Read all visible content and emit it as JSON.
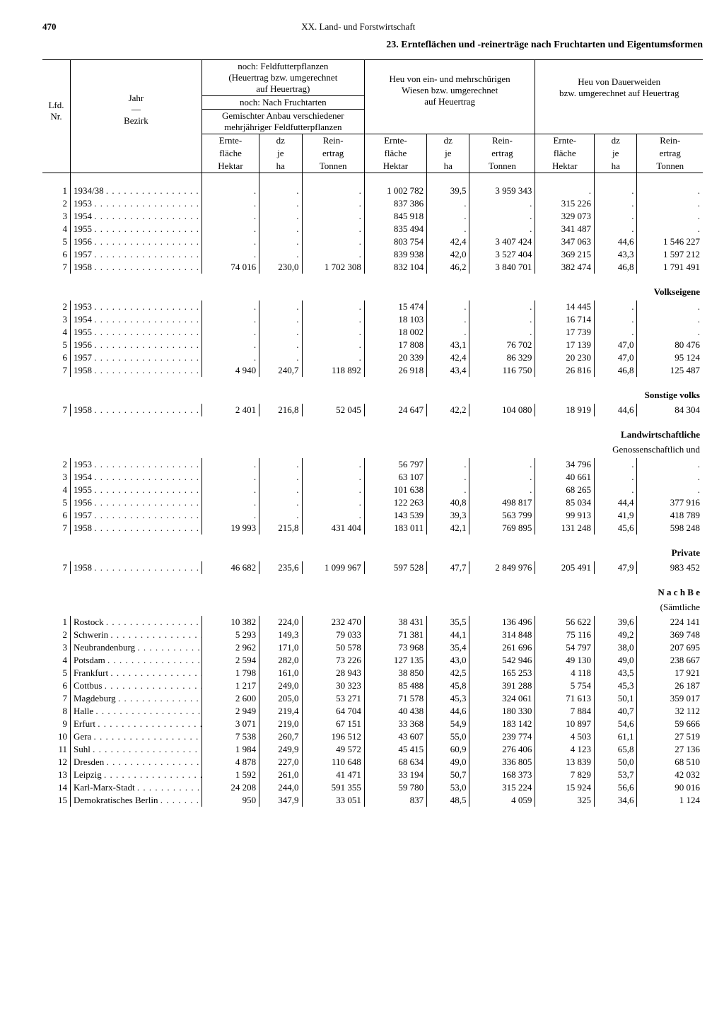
{
  "page_number": "470",
  "chapter": "XX. Land- und Forstwirtschaft",
  "title": "23. Ernteflächen und -reinerträge nach Fruchtarten und Eigentumsformen",
  "head": {
    "lfd": "Lfd.\nNr.",
    "jahr": "Jahr",
    "bezirk": "Bezirk",
    "g1_top1": "noch: Feldfutterpflanzen",
    "g1_top2": "(Heuertrag bzw. umgerechnet",
    "g1_top3": "auf Heuertrag)",
    "g1_mid": "noch: Nach Fruchtarten",
    "g1_low1": "Gemischter Anbau verschiedener",
    "g1_low2": "mehrjähriger Feldfutterpflanzen",
    "g2_top1": "Heu von ein- und mehrschürigen",
    "g2_top2": "Wiesen bzw. umgerechnet",
    "g2_top3": "auf Heuertrag",
    "g3_top1": "Heu von Dauerweiden",
    "g3_top2": "bzw. umgerechnet auf Heuertrag",
    "col_a1": "Ernte-",
    "col_a2": "fläche",
    "col_a3": "Hektar",
    "col_b1": "dz",
    "col_b2": "je",
    "col_b3": "ha",
    "col_c1": "Rein-",
    "col_c2": "ertrag",
    "col_c3": "Tonnen"
  },
  "sections": [
    {
      "label": "",
      "sub": "",
      "rows": [
        {
          "nr": "1",
          "y": "1934/38",
          "a": ".",
          "b": ".",
          "c": ".",
          "d": "1 002 782",
          "e": "39,5",
          "f": "3 959 343",
          "g": ".",
          "h": ".",
          "i": "."
        },
        {
          "nr": "2",
          "y": "1953",
          "a": ".",
          "b": ".",
          "c": ".",
          "d": "837 386",
          "e": ".",
          "f": ".",
          "g": "315 226",
          "h": ".",
          "i": "."
        },
        {
          "nr": "3",
          "y": "1954",
          "a": ".",
          "b": ".",
          "c": ".",
          "d": "845 918",
          "e": ".",
          "f": ".",
          "g": "329 073",
          "h": ".",
          "i": "."
        },
        {
          "nr": "4",
          "y": "1955",
          "a": ".",
          "b": ".",
          "c": ".",
          "d": "835 494",
          "e": ".",
          "f": ".",
          "g": "341 487",
          "h": ".",
          "i": "."
        },
        {
          "nr": "5",
          "y": "1956",
          "a": ".",
          "b": ".",
          "c": ".",
          "d": "803 754",
          "e": "42,4",
          "f": "3 407 424",
          "g": "347 063",
          "h": "44,6",
          "i": "1 546 227"
        },
        {
          "nr": "6",
          "y": "1957",
          "a": ".",
          "b": ".",
          "c": ".",
          "d": "839 938",
          "e": "42,0",
          "f": "3 527 404",
          "g": "369 215",
          "h": "43,3",
          "i": "1 597 212"
        },
        {
          "nr": "7",
          "y": "1958",
          "a": "74 016",
          "b": "230,0",
          "c": "1 702 308",
          "d": "832 104",
          "e": "46,2",
          "f": "3 840 701",
          "g": "382 474",
          "h": "46,8",
          "i": "1 791 491"
        }
      ]
    },
    {
      "label": "Volkseigene",
      "sub": "",
      "rows": [
        {
          "nr": "2",
          "y": "1953",
          "a": ".",
          "b": ".",
          "c": ".",
          "d": "15 474",
          "e": ".",
          "f": ".",
          "g": "14 445",
          "h": ".",
          "i": "."
        },
        {
          "nr": "3",
          "y": "1954",
          "a": ".",
          "b": ".",
          "c": ".",
          "d": "18 103",
          "e": ".",
          "f": ".",
          "g": "16 714",
          "h": ".",
          "i": "."
        },
        {
          "nr": "4",
          "y": "1955",
          "a": ".",
          "b": ".",
          "c": ".",
          "d": "18 002",
          "e": ".",
          "f": ".",
          "g": "17 739",
          "h": ".",
          "i": "."
        },
        {
          "nr": "5",
          "y": "1956",
          "a": ".",
          "b": ".",
          "c": ".",
          "d": "17 808",
          "e": "43,1",
          "f": "76 702",
          "g": "17 139",
          "h": "47,0",
          "i": "80 476"
        },
        {
          "nr": "6",
          "y": "1957",
          "a": ".",
          "b": ".",
          "c": ".",
          "d": "20 339",
          "e": "42,4",
          "f": "86 329",
          "g": "20 230",
          "h": "47,0",
          "i": "95 124"
        },
        {
          "nr": "7",
          "y": "1958",
          "a": "4 940",
          "b": "240,7",
          "c": "118 892",
          "d": "26 918",
          "e": "43,4",
          "f": "116 750",
          "g": "26 816",
          "h": "46,8",
          "i": "125 487"
        }
      ]
    },
    {
      "label": "Sonstige volks",
      "sub": "",
      "rows": [
        {
          "nr": "7",
          "y": "1958",
          "a": "2 401",
          "b": "216,8",
          "c": "52 045",
          "d": "24 647",
          "e": "42,2",
          "f": "104 080",
          "g": "18 919",
          "h": "44,6",
          "i": "84 304"
        }
      ]
    },
    {
      "label": "Landwirtschaftliche",
      "sub": "Genossenschaftlich und",
      "rows": [
        {
          "nr": "2",
          "y": "1953",
          "a": ".",
          "b": ".",
          "c": ".",
          "d": "56 797",
          "e": ".",
          "f": ".",
          "g": "34 796",
          "h": ".",
          "i": "."
        },
        {
          "nr": "3",
          "y": "1954",
          "a": ".",
          "b": ".",
          "c": ".",
          "d": "63 107",
          "e": ".",
          "f": ".",
          "g": "40 661",
          "h": ".",
          "i": "."
        },
        {
          "nr": "4",
          "y": "1955",
          "a": ".",
          "b": ".",
          "c": ".",
          "d": "101 638",
          "e": ".",
          "f": ".",
          "g": "68 265",
          "h": ".",
          "i": "."
        },
        {
          "nr": "5",
          "y": "1956",
          "a": ".",
          "b": ".",
          "c": ".",
          "d": "122 263",
          "e": "40,8",
          "f": "498 817",
          "g": "85 034",
          "h": "44,4",
          "i": "377 916"
        },
        {
          "nr": "6",
          "y": "1957",
          "a": ".",
          "b": ".",
          "c": ".",
          "d": "143 539",
          "e": "39,3",
          "f": "563 799",
          "g": "99 913",
          "h": "41,9",
          "i": "418 789"
        },
        {
          "nr": "7",
          "y": "1958",
          "a": "19 993",
          "b": "215,8",
          "c": "431 404",
          "d": "183 011",
          "e": "42,1",
          "f": "769 895",
          "g": "131 248",
          "h": "45,6",
          "i": "598 248"
        }
      ]
    },
    {
      "label": "Private",
      "sub": "",
      "rows": [
        {
          "nr": "7",
          "y": "1958",
          "a": "46 682",
          "b": "235,6",
          "c": "1 099 967",
          "d": "597 528",
          "e": "47,7",
          "f": "2 849 976",
          "g": "205 491",
          "h": "47,9",
          "i": "983 452"
        }
      ]
    },
    {
      "label": "N a c h  B e",
      "sub": "(Sämtliche",
      "rows": [
        {
          "nr": "1",
          "y": "Rostock",
          "a": "10 382",
          "b": "224,0",
          "c": "232 470",
          "d": "38 431",
          "e": "35,5",
          "f": "136 496",
          "g": "56 622",
          "h": "39,6",
          "i": "224 141"
        },
        {
          "nr": "2",
          "y": "Schwerin",
          "a": "5 293",
          "b": "149,3",
          "c": "79 033",
          "d": "71 381",
          "e": "44,1",
          "f": "314 848",
          "g": "75 116",
          "h": "49,2",
          "i": "369 748"
        },
        {
          "nr": "3",
          "y": "Neubrandenburg",
          "a": "2 962",
          "b": "171,0",
          "c": "50 578",
          "d": "73 968",
          "e": "35,4",
          "f": "261 696",
          "g": "54 797",
          "h": "38,0",
          "i": "207 695"
        },
        {
          "nr": "4",
          "y": "Potsdam",
          "a": "2 594",
          "b": "282,0",
          "c": "73 226",
          "d": "127 135",
          "e": "43,0",
          "f": "542 946",
          "g": "49 130",
          "h": "49,0",
          "i": "238 667"
        },
        {
          "nr": "5",
          "y": "Frankfurt",
          "a": "1 798",
          "b": "161,0",
          "c": "28 943",
          "d": "38 850",
          "e": "42,5",
          "f": "165 253",
          "g": "4 118",
          "h": "43,5",
          "i": "17 921"
        },
        {
          "nr": "6",
          "y": "Cottbus",
          "a": "1 217",
          "b": "249,0",
          "c": "30 323",
          "d": "85 488",
          "e": "45,8",
          "f": "391 288",
          "g": "5 754",
          "h": "45,3",
          "i": "26 187"
        },
        {
          "nr": "7",
          "y": "Magdeburg",
          "a": "2 600",
          "b": "205,0",
          "c": "53 271",
          "d": "71 578",
          "e": "45,3",
          "f": "324 061",
          "g": "71 613",
          "h": "50,1",
          "i": "359 017"
        },
        {
          "nr": "8",
          "y": "Halle",
          "a": "2 949",
          "b": "219,4",
          "c": "64 704",
          "d": "40 438",
          "e": "44,6",
          "f": "180 330",
          "g": "7 884",
          "h": "40,7",
          "i": "32 112"
        },
        {
          "nr": "9",
          "y": "Erfurt",
          "a": "3 071",
          "b": "219,0",
          "c": "67 151",
          "d": "33 368",
          "e": "54,9",
          "f": "183 142",
          "g": "10 897",
          "h": "54,6",
          "i": "59 666"
        },
        {
          "nr": "10",
          "y": "Gera",
          "a": "7 538",
          "b": "260,7",
          "c": "196 512",
          "d": "43 607",
          "e": "55,0",
          "f": "239 774",
          "g": "4 503",
          "h": "61,1",
          "i": "27 519"
        },
        {
          "nr": "11",
          "y": "Suhl",
          "a": "1 984",
          "b": "249,9",
          "c": "49 572",
          "d": "45 415",
          "e": "60,9",
          "f": "276 406",
          "g": "4 123",
          "h": "65,8",
          "i": "27 136"
        },
        {
          "nr": "12",
          "y": "Dresden",
          "a": "4 878",
          "b": "227,0",
          "c": "110 648",
          "d": "68 634",
          "e": "49,0",
          "f": "336 805",
          "g": "13 839",
          "h": "50,0",
          "i": "68 510"
        },
        {
          "nr": "13",
          "y": "Leipzig",
          "a": "1 592",
          "b": "261,0",
          "c": "41 471",
          "d": "33 194",
          "e": "50,7",
          "f": "168 373",
          "g": "7 829",
          "h": "53,7",
          "i": "42 032"
        },
        {
          "nr": "14",
          "y": "Karl-Marx-Stadt",
          "a": "24 208",
          "b": "244,0",
          "c": "591 355",
          "d": "59 780",
          "e": "53,0",
          "f": "315 224",
          "g": "15 924",
          "h": "56,6",
          "i": "90 016"
        },
        {
          "nr": "15",
          "y": "Demokratisches Berlin",
          "a": "950",
          "b": "347,9",
          "c": "33 051",
          "d": "837",
          "e": "48,5",
          "f": "4 059",
          "g": "325",
          "h": "34,6",
          "i": "1 124"
        }
      ]
    }
  ]
}
